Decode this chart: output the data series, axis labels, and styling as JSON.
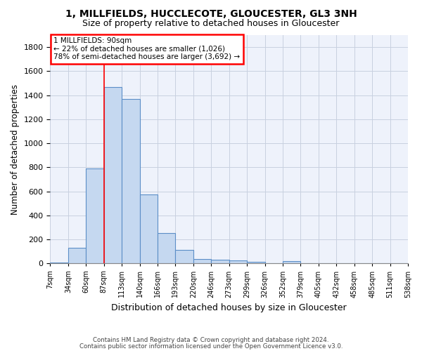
{
  "title1": "1, MILLFIELDS, HUCCLECOTE, GLOUCESTER, GL3 3NH",
  "title2": "Size of property relative to detached houses in Gloucester",
  "xlabel": "Distribution of detached houses by size in Gloucester",
  "ylabel": "Number of detached properties",
  "footer1": "Contains HM Land Registry data © Crown copyright and database right 2024.",
  "footer2": "Contains public sector information licensed under the Open Government Licence v3.0.",
  "annotation_line1": "1 MILLFIELDS: 90sqm",
  "annotation_line2": "← 22% of detached houses are smaller (1,026)",
  "annotation_line3": "78% of semi-detached houses are larger (3,692) →",
  "bar_values": [
    10,
    130,
    790,
    1470,
    1370,
    575,
    250,
    110,
    35,
    30,
    25,
    15,
    0,
    20,
    0,
    0,
    0,
    0,
    0,
    0
  ],
  "bar_color": "#c5d8f0",
  "bar_edge_color": "#5b8ec7",
  "categories": [
    "7sqm",
    "34sqm",
    "60sqm",
    "87sqm",
    "113sqm",
    "140sqm",
    "166sqm",
    "193sqm",
    "220sqm",
    "246sqm",
    "273sqm",
    "299sqm",
    "326sqm",
    "352sqm",
    "379sqm",
    "405sqm",
    "432sqm",
    "458sqm",
    "485sqm",
    "511sqm",
    "538sqm"
  ],
  "ylim": [
    0,
    1900
  ],
  "yticks": [
    0,
    200,
    400,
    600,
    800,
    1000,
    1200,
    1400,
    1600,
    1800
  ],
  "subject_line_index": 3,
  "grid_color": "#c8d0e0",
  "bg_color": "#eef2fb"
}
